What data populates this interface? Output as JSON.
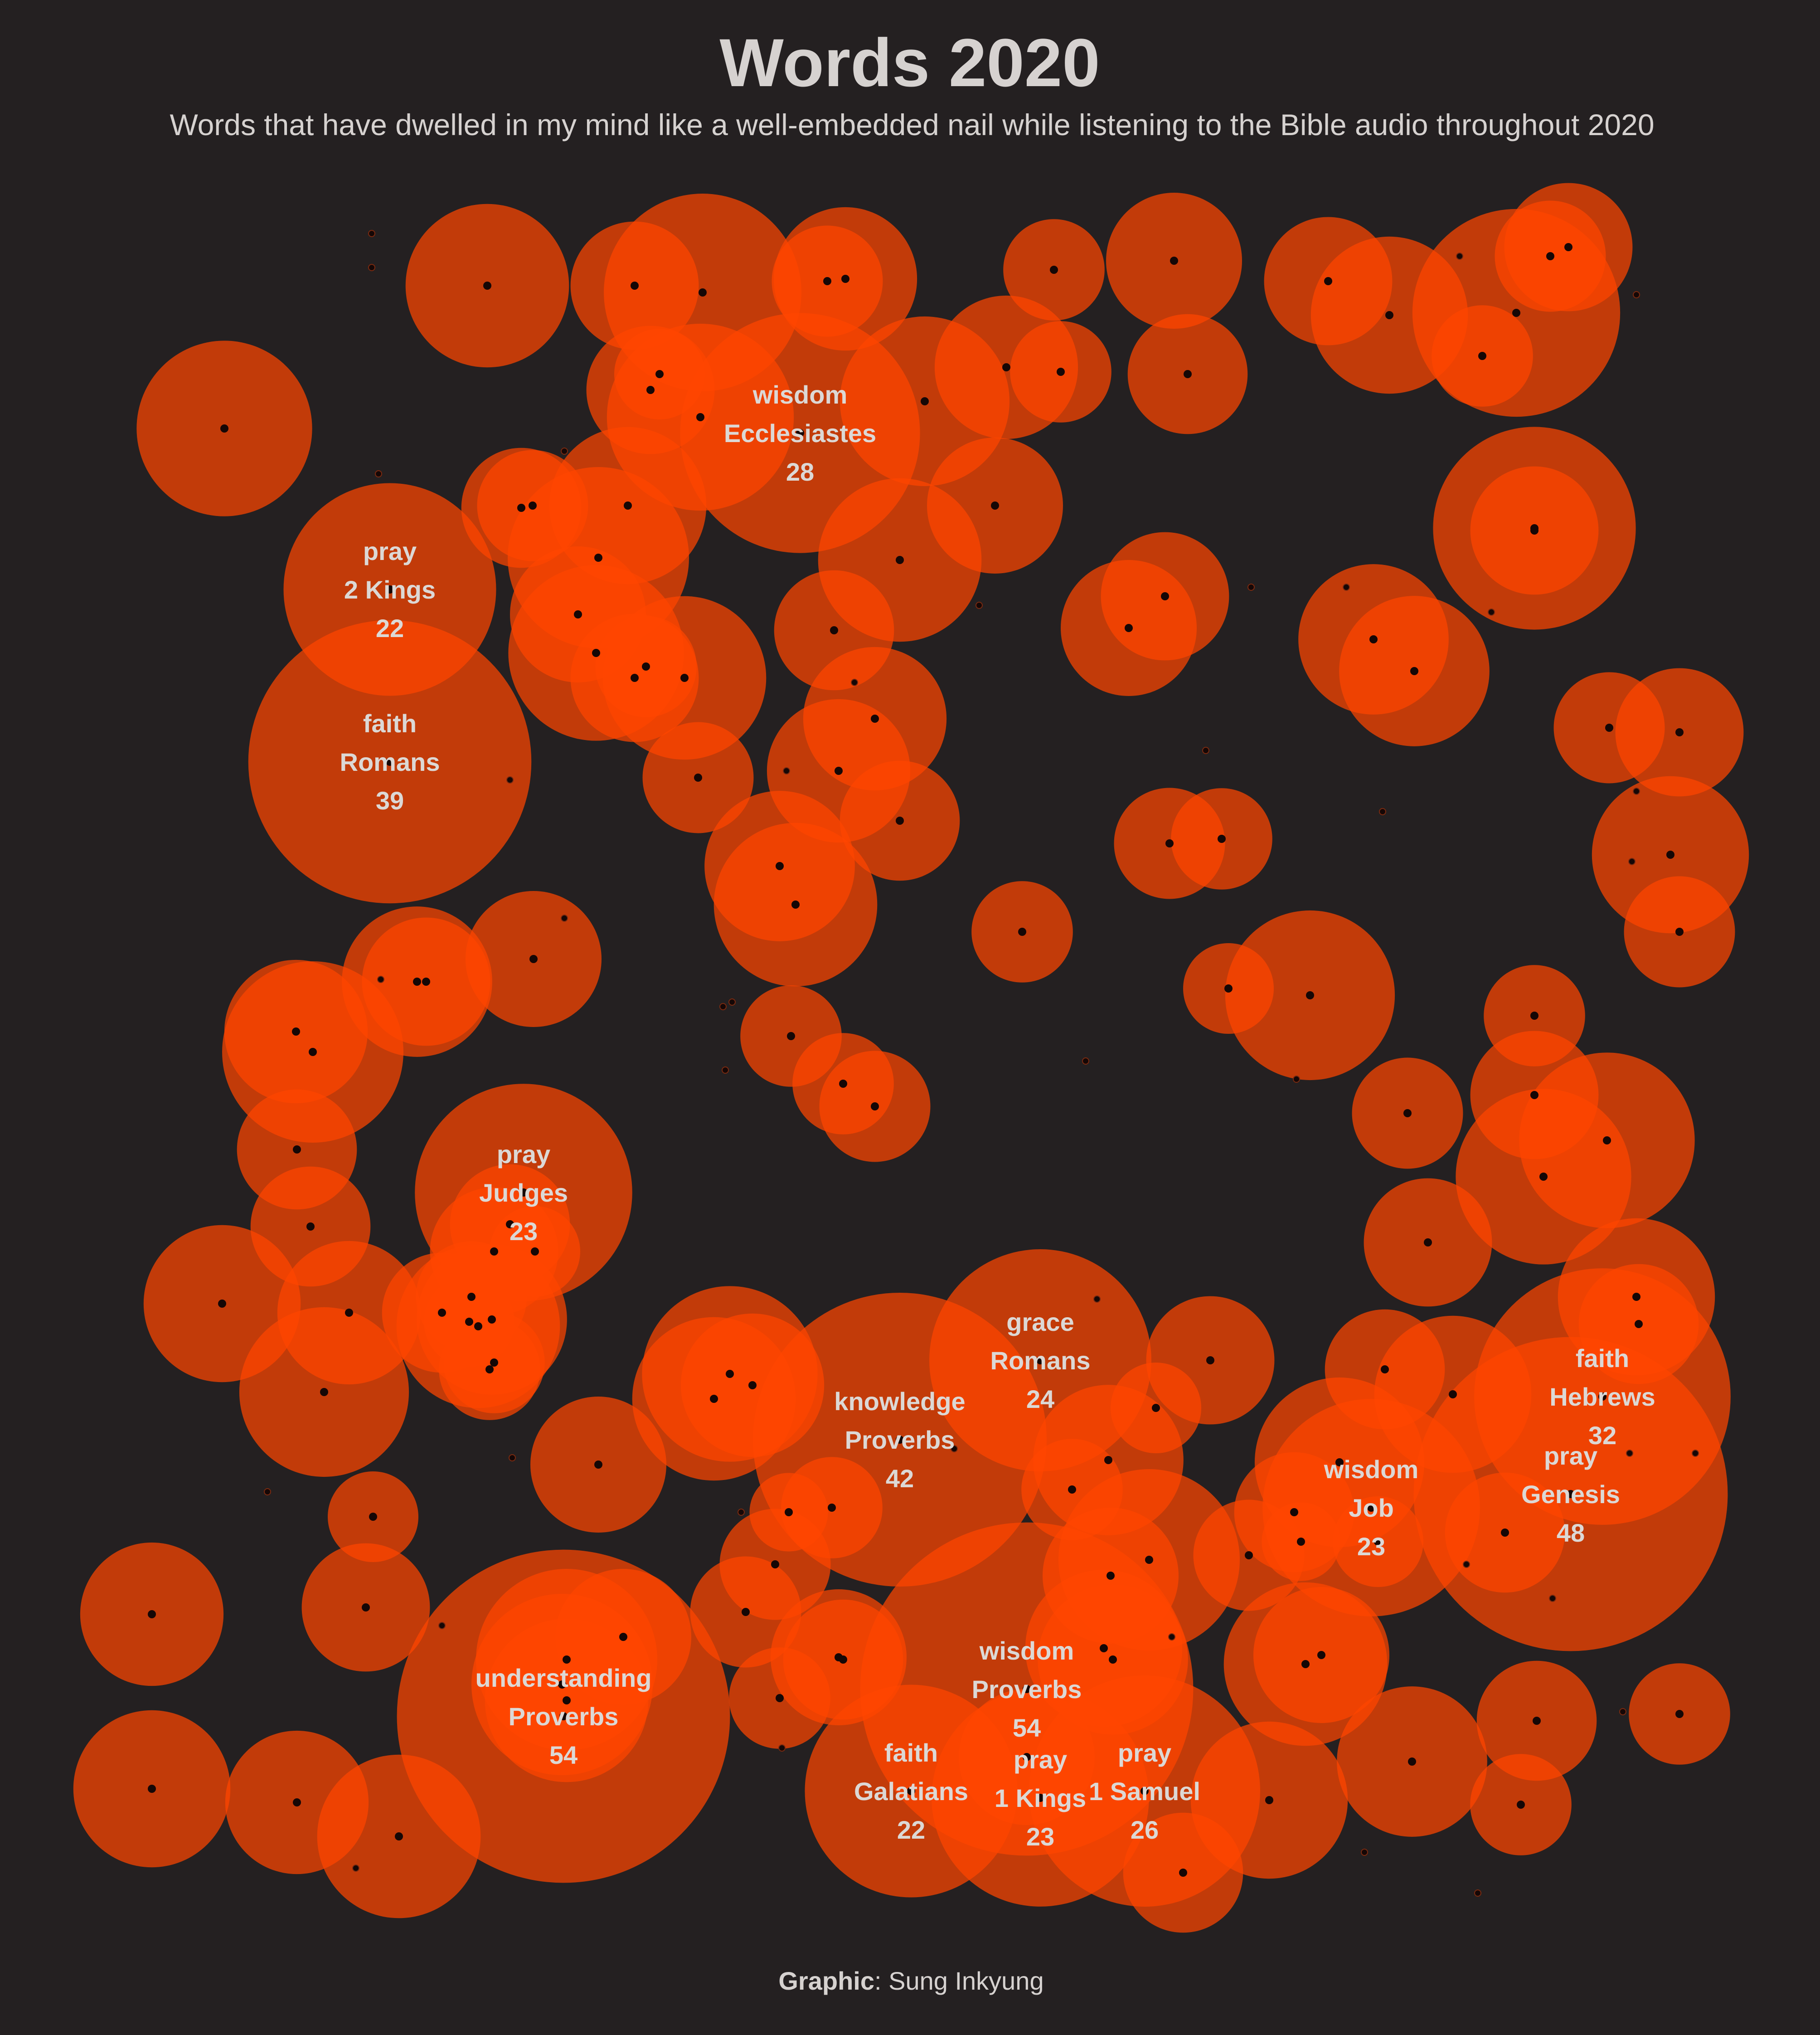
{
  "title": "Words 2020",
  "subtitle": "Words that have dwelled in my mind like a well-embedded nail while listening to the Bible audio throughout 2020",
  "caption": {
    "bold": "Graphic",
    "rest": ": Sung Inkyung"
  },
  "colors": {
    "background": "#242021",
    "bubble": "#ff4500",
    "dot": "#150706",
    "text": "#d6d2d0"
  },
  "chart_data": {
    "type": "scatter",
    "title": "Words 2020",
    "encoding": "packed bubbles; bubble area = count",
    "labeled": [
      {
        "word": "wisdom",
        "book": "Ecclesiastes",
        "count": 28
      },
      {
        "word": "pray",
        "book": "2 Kings",
        "count": 22
      },
      {
        "word": "faith",
        "book": "Romans",
        "count": 39
      },
      {
        "word": "pray",
        "book": "Judges",
        "count": 23
      },
      {
        "word": "knowledge",
        "book": "Proverbs",
        "count": 42
      },
      {
        "word": "grace",
        "book": "Romans",
        "count": 24
      },
      {
        "word": "faith",
        "book": "Hebrews",
        "count": 32
      },
      {
        "word": "pray",
        "book": "Genesis",
        "count": 48
      },
      {
        "word": "wisdom",
        "book": "Job",
        "count": 23
      },
      {
        "word": "understanding",
        "book": "Proverbs",
        "count": 54
      },
      {
        "word": "wisdom",
        "book": "Proverbs",
        "count": 54
      },
      {
        "word": "faith",
        "book": "Galatians",
        "count": 22
      },
      {
        "word": "pray",
        "book": "1 Kings",
        "count": 23
      },
      {
        "word": "pray",
        "book": "1 Samuel",
        "count": 26
      }
    ],
    "unlabeled_counts": [
      15,
      8,
      13,
      19,
      6,
      10,
      5,
      9,
      8,
      12,
      6,
      8,
      21,
      5,
      7,
      10,
      5,
      14,
      9,
      13,
      17,
      8,
      4,
      7,
      6,
      12,
      16,
      9,
      5,
      13,
      7,
      10,
      6,
      10,
      7,
      11,
      13,
      20,
      8,
      11,
      11,
      6,
      8,
      12,
      6,
      5,
      6,
      5,
      9,
      8,
      9,
      11,
      5,
      5,
      6,
      4,
      14,
      5,
      8,
      15,
      6,
      15,
      8,
      12,
      7,
      7,
      12,
      7,
      14,
      7,
      3,
      4,
      3,
      6,
      13,
      9,
      16,
      7,
      5,
      11,
      5,
      12,
      7,
      15,
      10,
      13,
      8,
      4,
      5,
      11,
      9,
      8,
      6,
      7,
      4,
      13,
      7,
      4,
      5,
      5,
      11,
      10,
      8,
      16,
      7,
      7,
      12,
      10,
      14,
      9,
      7,
      9,
      9,
      9,
      16,
      16,
      13,
      10,
      13,
      12,
      10,
      4,
      8,
      6,
      6,
      5,
      5,
      11,
      12,
      8,
      15
    ]
  }
}
